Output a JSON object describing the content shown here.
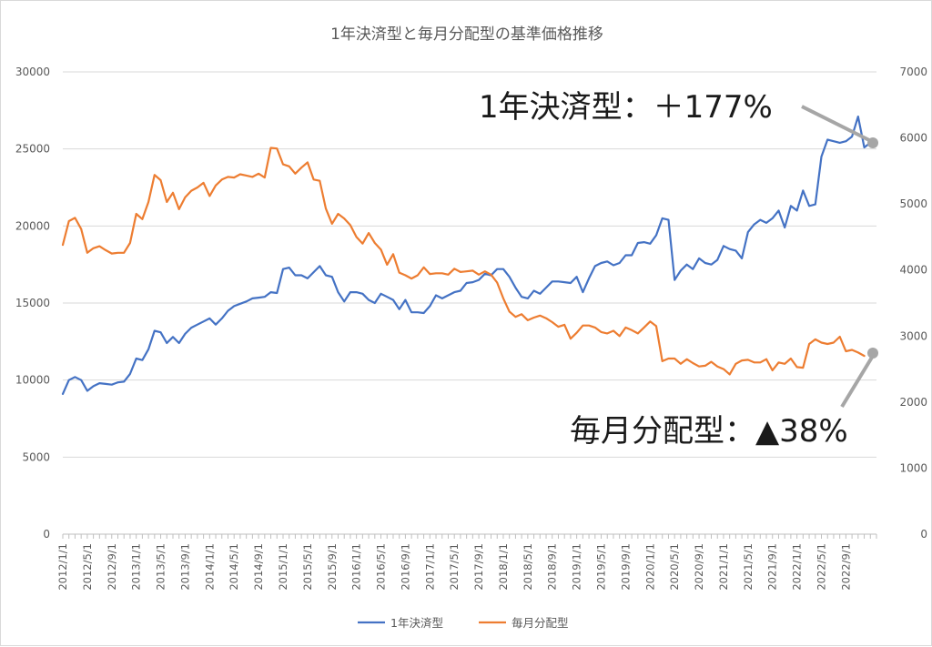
{
  "chart_data": {
    "type": "line",
    "title": "1年決済型と毎月分配型の基準価格推移",
    "y_left": {
      "range": [
        0,
        30000
      ],
      "ticks": [
        "0",
        "5000",
        "10000",
        "15000",
        "20000",
        "25000",
        "30000"
      ],
      "series": "1年決済型"
    },
    "y_right": {
      "range": [
        0,
        7000
      ],
      "ticks": [
        "0",
        "1000",
        "2000",
        "3000",
        "4000",
        "5000",
        "6000",
        "7000"
      ],
      "series": "毎月分配型"
    },
    "gridlines": true,
    "legend_position": "bottom",
    "x_tick_labels": [
      "2012/1/1",
      "2012/5/1",
      "2012/9/1",
      "2013/1/1",
      "2013/5/1",
      "2013/9/1",
      "2014/1/1",
      "2014/5/1",
      "2014/9/1",
      "2015/1/1",
      "2015/5/1",
      "2015/9/1",
      "2016/1/1",
      "2016/5/1",
      "2016/9/1",
      "2017/1/1",
      "2017/5/1",
      "2017/9/1",
      "2018/1/1",
      "2018/5/1",
      "2018/9/1",
      "2019/1/1",
      "2019/5/1",
      "2019/9/1",
      "2020/1/1",
      "2020/5/1",
      "2020/9/1",
      "2021/1/1",
      "2021/5/1",
      "2021/9/1",
      "2022/1/1",
      "2022/5/1",
      "2022/9/1"
    ],
    "series": [
      {
        "name": "1年決済型",
        "color": "#4472c4",
        "axis": "left",
        "values": [
          9100,
          10000,
          10200,
          10000,
          9300,
          9600,
          9800,
          9750,
          9700,
          9850,
          9900,
          10400,
          11400,
          11300,
          12000,
          13200,
          13100,
          12400,
          12800,
          12400,
          13000,
          13400,
          13600,
          13800,
          14000,
          13600,
          14000,
          14500,
          14800,
          14950,
          15100,
          15300,
          15350,
          15400,
          15700,
          15650,
          17200,
          17300,
          16800,
          16800,
          16600,
          17000,
          17400,
          16800,
          16700,
          15700,
          15100,
          15700,
          15700,
          15600,
          15200,
          15000,
          15600,
          15400,
          15200,
          14600,
          15200,
          14400,
          14400,
          14350,
          14800,
          15500,
          15300,
          15500,
          15700,
          15800,
          16300,
          16350,
          16500,
          16900,
          16800,
          17200,
          17200,
          16700,
          16000,
          15400,
          15300,
          15800,
          15600,
          16000,
          16400,
          16400,
          16350,
          16300,
          16700,
          15700,
          16600,
          17400,
          17600,
          17700,
          17450,
          17600,
          18100,
          18100,
          18900,
          18950,
          18850,
          19400,
          20500,
          20400,
          16500,
          17100,
          17500,
          17200,
          17900,
          17600,
          17500,
          17800,
          18700,
          18500,
          18400,
          17900,
          19600,
          20100,
          20400,
          20200,
          20500,
          21000,
          19900,
          21300,
          21000,
          22300,
          21300,
          21400,
          24500,
          25600,
          25500,
          25400,
          25500,
          25800,
          27100,
          25100,
          25400,
          25300
        ]
      },
      {
        "name": "毎月分配型",
        "color": "#ed7d31",
        "axis": "right",
        "values": [
          4380,
          4740,
          4790,
          4620,
          4260,
          4330,
          4360,
          4300,
          4250,
          4260,
          4260,
          4410,
          4850,
          4770,
          5030,
          5440,
          5360,
          5030,
          5170,
          4920,
          5100,
          5200,
          5250,
          5320,
          5120,
          5280,
          5370,
          5410,
          5400,
          5450,
          5430,
          5410,
          5460,
          5400,
          5850,
          5840,
          5600,
          5570,
          5460,
          5550,
          5630,
          5370,
          5350,
          4930,
          4700,
          4850,
          4780,
          4680,
          4500,
          4400,
          4560,
          4410,
          4310,
          4080,
          4240,
          3960,
          3920,
          3870,
          3920,
          4040,
          3940,
          3950,
          3950,
          3930,
          4020,
          3970,
          3980,
          3990,
          3930,
          3980,
          3930,
          3810,
          3570,
          3370,
          3290,
          3330,
          3240,
          3280,
          3310,
          3270,
          3210,
          3140,
          3170,
          2960,
          3050,
          3160,
          3160,
          3130,
          3060,
          3040,
          3080,
          3000,
          3130,
          3090,
          3040,
          3130,
          3220,
          3150,
          2620,
          2660,
          2660,
          2580,
          2650,
          2590,
          2540,
          2550,
          2610,
          2540,
          2500,
          2420,
          2580,
          2630,
          2640,
          2600,
          2600,
          2650,
          2480,
          2600,
          2580,
          2660,
          2530,
          2520,
          2880,
          2950,
          2900,
          2880,
          2900,
          2990,
          2770,
          2790,
          2750,
          2700
        ]
      }
    ],
    "annotations": [
      {
        "text": "1年決済型：＋177%"
      },
      {
        "text": "毎月分配型：▲38%"
      }
    ]
  }
}
